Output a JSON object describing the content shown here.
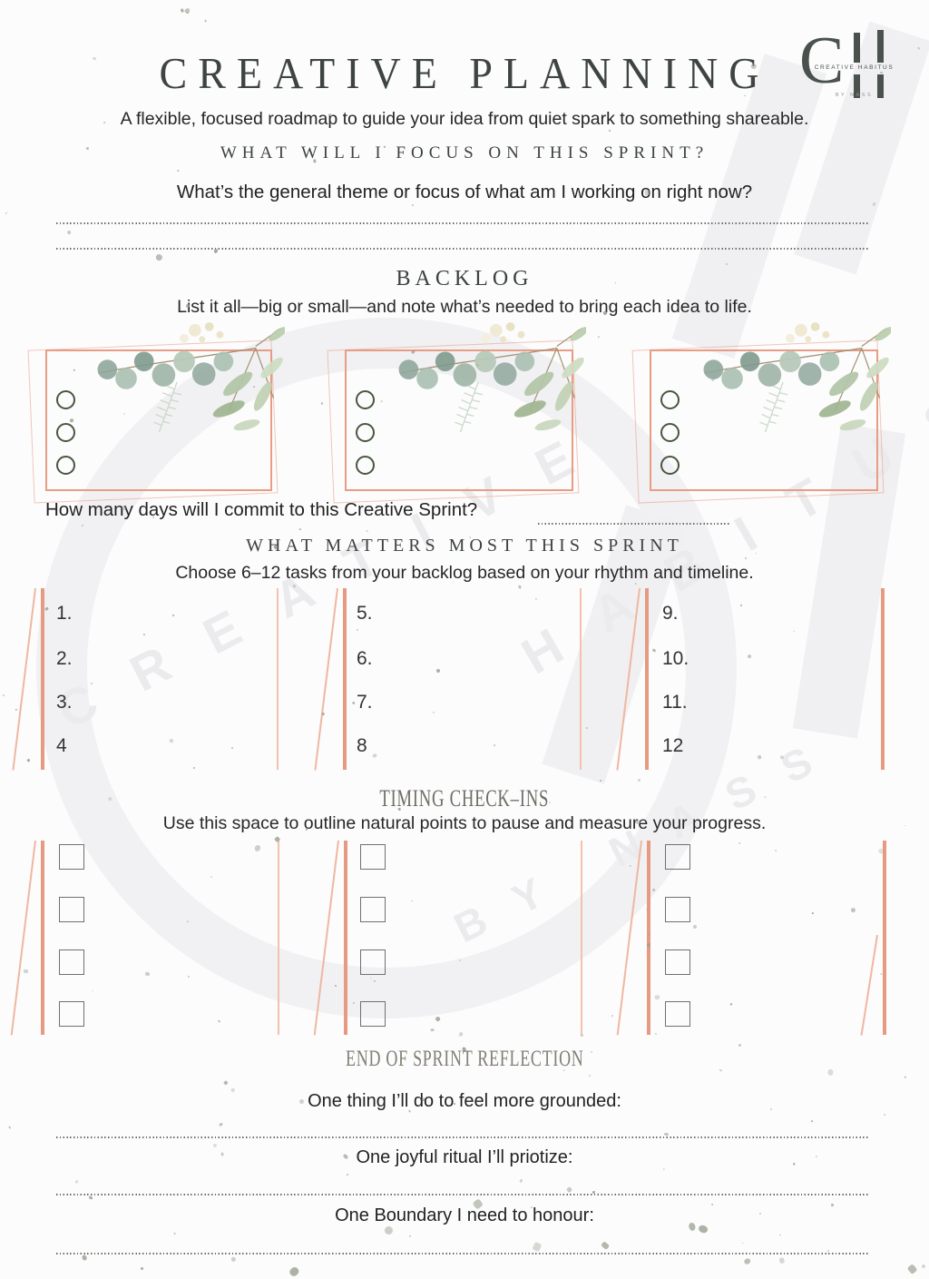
{
  "page": {
    "title": "CREATIVE PLANNING",
    "subtitle": "A flexible, focused roadmap to guide your idea from quiet spark to something shareable."
  },
  "logo": {
    "initial_c": "C",
    "name": "CREATIVE HABITUS",
    "byline": "BY NASS"
  },
  "focus": {
    "heading": "WHAT WILL I FOCUS ON THIS SPRINT?",
    "question": "What’s the general theme or focus of what am I working on right now?"
  },
  "backlog": {
    "heading": "BACKLOG",
    "caption": "List it all—big or small—and note what’s needed to bring each idea to life."
  },
  "days": {
    "label": "How many days will I commit to this Creative Sprint?"
  },
  "matters": {
    "heading": "WHAT MATTERS MOST THIS SPRINT",
    "caption": "Choose 6–12 tasks from your backlog based on your rhythm and timeline.",
    "items": [
      "1.",
      "2.",
      "3.",
      "4",
      "5.",
      "6.",
      "7.",
      "8",
      "9.",
      "10.",
      "11.",
      "12"
    ]
  },
  "timing": {
    "heading": "TIMING CHECK–INS",
    "caption": "Use this space to outline natural points to pause and measure your progress."
  },
  "reflection": {
    "heading": "END OF SPRINT REFLECTION",
    "prompt_grounded": "One thing I’ll do to feel more grounded:",
    "prompt_ritual": "One joyful ritual I’ll priotize:",
    "prompt_boundary": "One Boundary I need to honour:"
  },
  "watermark": {
    "word1": "CREATIVE",
    "word2": "HABITUS",
    "word3": "BY NASS"
  },
  "colors": {
    "accent-rose": "#e79c83",
    "accent-rose-light": "#f3c1ad",
    "bullet-green": "#46573f",
    "heading-dark": "#3c423e",
    "heading-muted": "#7f7d73",
    "speckle-sage": "#98a192",
    "logo-ink": "#4a524d",
    "watermark-gray": "#ebebee"
  }
}
